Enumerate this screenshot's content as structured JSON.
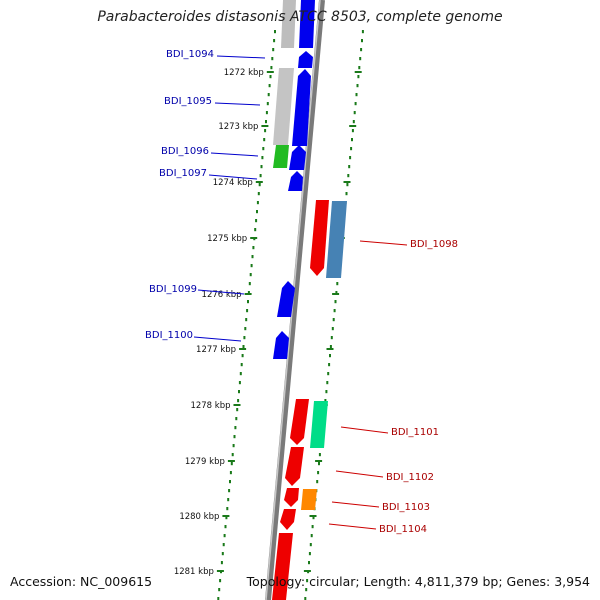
{
  "title": "Parabacteroides distasonis ATCC 8503, complete genome",
  "footer": {
    "accession": "Accession: NC_009615",
    "stats": "Topology: circular; Length: 4,811,379 bp; Genes: 3,954"
  },
  "colors": {
    "backbone": "#7a7a7a",
    "tick_marks": "#1a7a1a",
    "forward_label": "#0000aa",
    "reverse_label": "#aa0000",
    "leader_forward": "#0000cc",
    "leader_reverse": "#cc0000"
  },
  "kbp_ticks": [
    {
      "label": "1272 kbp"
    },
    {
      "label": "1273 kbp"
    },
    {
      "label": "1274 kbp"
    },
    {
      "label": "1275 kbp"
    },
    {
      "label": "1276 kbp"
    },
    {
      "label": "1277 kbp"
    },
    {
      "label": "1278 kbp"
    },
    {
      "label": "1279 kbp"
    },
    {
      "label": "1280 kbp"
    },
    {
      "label": "1281 kbp"
    }
  ],
  "gene_labels": {
    "forward": [
      "BDI_1094",
      "BDI_1095",
      "BDI_1096",
      "BDI_1097",
      "BDI_1099",
      "BDI_1100"
    ],
    "reverse": [
      "BDI_1098",
      "BDI_1101",
      "BDI_1102",
      "BDI_1103",
      "BDI_1104"
    ]
  },
  "feature_colors": {
    "gray": "#bdbdbd",
    "blue": "#0000ee",
    "green": "#22bb22",
    "red": "#ee0000",
    "steelblue": "#4682b4",
    "aqua": "#00dd88",
    "orange": "#ff8800"
  }
}
